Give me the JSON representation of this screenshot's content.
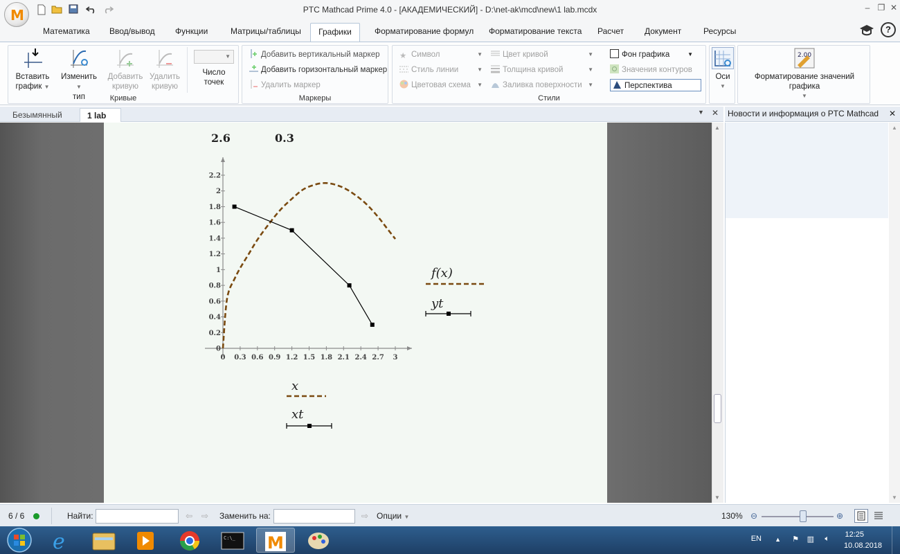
{
  "window": {
    "title": "PTC Mathcad Prime 4.0 - [АКАДЕМИЧЕСКИЙ] - D:\\net-ak\\mcd\\new\\1 lab.mcdx",
    "logo_letter": "M"
  },
  "ribbon_tabs": [
    "Математика",
    "Ввод/вывод",
    "Функции",
    "Матрицы/таблицы",
    "Графики",
    "Форматирование формул",
    "Форматирование текста",
    "Расчет",
    "Документ",
    "Ресурсы"
  ],
  "ribbon": {
    "curves": {
      "label": "Кривые",
      "insert_plot": "Вставить\nграфик",
      "insert_plot_1": "Вставить",
      "insert_plot_2": "график",
      "change_type_1": "Изменить",
      "change_type_2": "тип",
      "add_curve_1": "Добавить",
      "add_curve_2": "кривую",
      "remove_curve_1": "Удалить",
      "remove_curve_2": "кривую",
      "num_points_1": "Число",
      "num_points_2": "точек"
    },
    "markers": {
      "label": "Маркеры",
      "add_vertical": "Добавить вертикальный маркер",
      "add_horizontal": "Добавить горизонтальный маркер",
      "remove": "Удалить маркер"
    },
    "styles": {
      "label": "Стили",
      "symbol": "Символ",
      "line_style": "Стиль линии",
      "color_scheme": "Цветовая схема",
      "curve_color": "Цвет кривой",
      "curve_thickness": "Толщина кривой",
      "surface_fill": "Заливка поверхности",
      "plot_background": "Фон графика",
      "contour_values": "Значения контуров",
      "perspective": "Перспектива"
    },
    "axes": "Оси",
    "format_values": "Форматирование значений графика"
  },
  "doc_tabs": [
    "Безымянный",
    "1 lab"
  ],
  "news_title": "Новости и информация о PTC Mathcad",
  "worksheet": {
    "value_a": "2.6",
    "value_b": "0.3",
    "legend_f": "f(x)",
    "legend_yt": "yt",
    "xaxis_x": "x",
    "xaxis_xt": "xt"
  },
  "chart_data": {
    "type": "line",
    "xlim": [
      0,
      3
    ],
    "ylim": [
      0,
      2.2
    ],
    "xticks": [
      "0",
      "0.3",
      "0.6",
      "0.9",
      "1.2",
      "1.5",
      "1.8",
      "2.1",
      "2.4",
      "2.7",
      "3"
    ],
    "yticks": [
      "0",
      "0.2",
      "0.4",
      "0.6",
      "0.8",
      "1",
      "1.2",
      "1.4",
      "1.6",
      "1.8",
      "2",
      "2.2"
    ],
    "series": [
      {
        "name": "f(x)",
        "style": "dashed",
        "color": "#7a4a10",
        "x": [
          0,
          0.05,
          0.1,
          0.2,
          0.3,
          0.45,
          0.6,
          0.8,
          1.0,
          1.2,
          1.4,
          1.6,
          1.75,
          1.9,
          2.1,
          2.3,
          2.5,
          2.7,
          2.85,
          3.0
        ],
        "y": [
          0,
          0.5,
          0.72,
          0.88,
          1.02,
          1.2,
          1.38,
          1.58,
          1.76,
          1.9,
          2.02,
          2.08,
          2.1,
          2.09,
          2.04,
          1.95,
          1.83,
          1.67,
          1.53,
          1.39
        ]
      },
      {
        "name": "yt",
        "style": "solid",
        "color": "#000000",
        "x": [
          0.2,
          1.2,
          2.2,
          2.6
        ],
        "y": [
          1.8,
          1.5,
          0.8,
          0.3
        ]
      }
    ]
  },
  "status": {
    "page": "6 / 6",
    "find_label": "Найти:",
    "replace_label": "Заменить на:",
    "options_label": "Опции",
    "zoom": "130%"
  },
  "taskbar": {
    "lang": "EN",
    "time": "12:25",
    "date": "10.08.2018"
  }
}
